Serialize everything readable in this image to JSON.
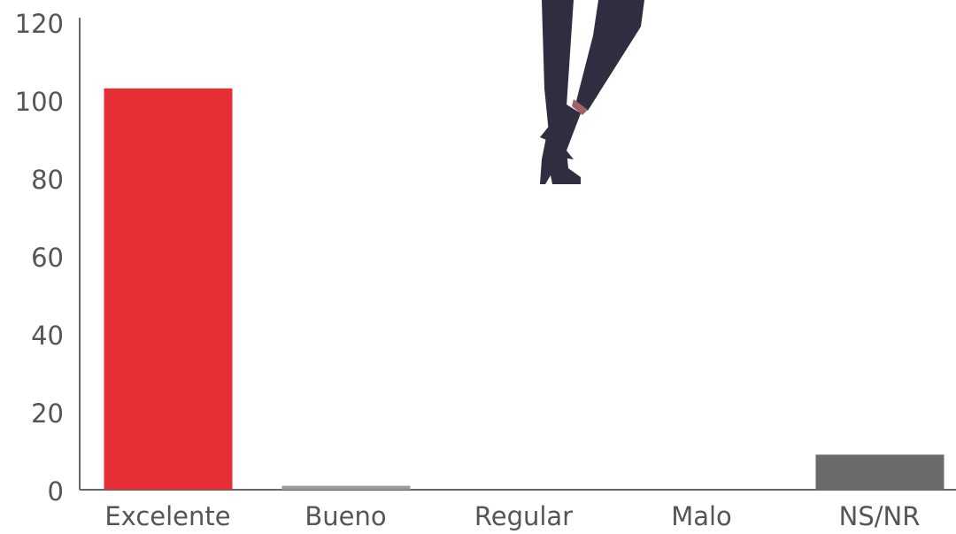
{
  "chart_data": {
    "type": "bar",
    "categories": [
      "Excelente",
      "Bueno",
      "Regular",
      "Malo",
      "NS/NR"
    ],
    "values": [
      103,
      1,
      0,
      0,
      9
    ],
    "colors": [
      "#e52e35",
      "#999999",
      "#999999",
      "#999999",
      "#6b6b6b"
    ],
    "ylim": [
      0,
      120
    ],
    "yticks": [
      0,
      20,
      40,
      60,
      80,
      100,
      120
    ],
    "grid": false
  }
}
